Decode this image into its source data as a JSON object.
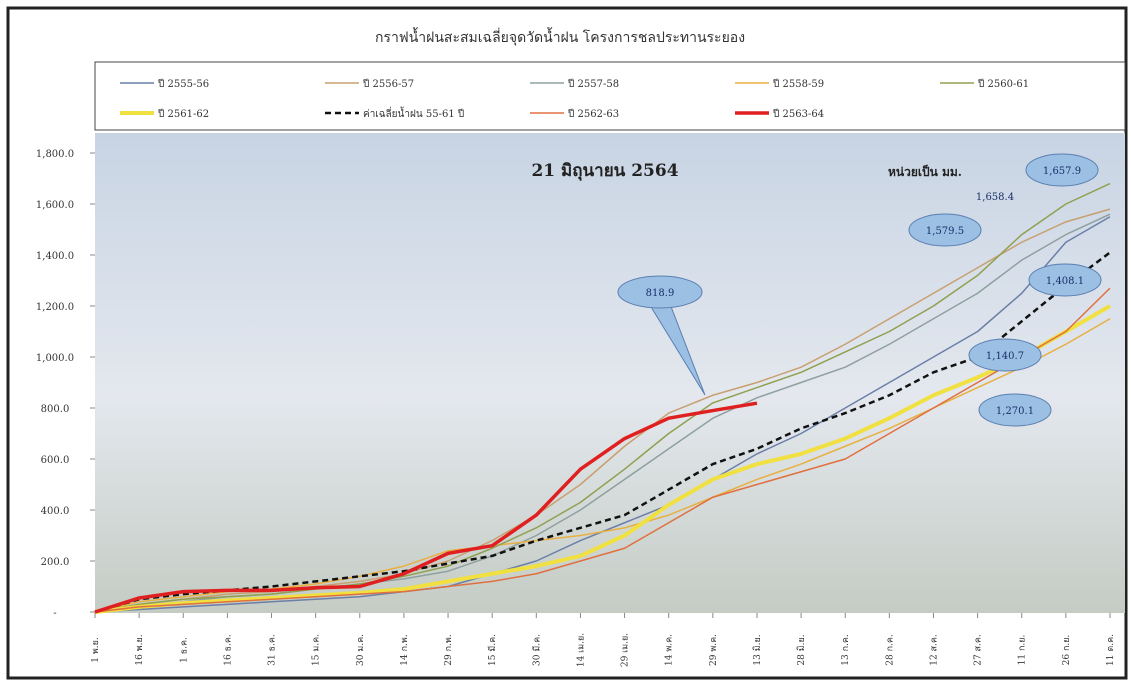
{
  "chart_data": {
    "type": "line",
    "title": "กราฟน้ำฝนสะสมเฉลี่ยจุดวัดน้ำฝน โครงการชลประทานระยอง",
    "annotations": [
      "21 มิถุนายน 2564",
      "หน่วยเป็น มม.",
      "818.9",
      "1,657.9",
      "1,658.4",
      "1,579.5",
      "1,408.1",
      "1,140.7",
      "1,270.1"
    ],
    "categories": [
      "1 พ.ย.",
      "16 พ.ย.",
      "1 ธ.ค.",
      "16 ธ.ค.",
      "31 ธ.ค.",
      "15 ม.ค.",
      "30 ม.ค.",
      "14 ก.พ.",
      "29 ก.พ.",
      "15 มี.ค.",
      "30 มี.ค.",
      "14 เม.ย.",
      "29 เม.ย.",
      "14 พ.ค.",
      "29 พ.ค.",
      "13 มิ.ย.",
      "28 มิ.ย.",
      "13 ก.ค.",
      "28 ก.ค.",
      "12 ส.ค.",
      "27 ส.ค.",
      "11 ก.ย.",
      "26 ก.ย.",
      "11 ต.ค."
    ],
    "ylim": [
      0,
      1800
    ],
    "yticks": [
      {
        "value": 0,
        "label": "-"
      },
      {
        "value": 200,
        "label": "200.0"
      },
      {
        "value": 400,
        "label": "400.0"
      },
      {
        "value": 600,
        "label": "600.0"
      },
      {
        "value": 800,
        "label": "800.0"
      },
      {
        "value": 1000,
        "label": "1,000.0"
      },
      {
        "value": 1200,
        "label": "1,200.0"
      },
      {
        "value": 1400,
        "label": "1,400.0"
      },
      {
        "value": 1600,
        "label": "1,600.0"
      },
      {
        "value": 1800,
        "label": "1,800.0"
      }
    ],
    "series": [
      {
        "name": "ปี 2555-56",
        "color": "#6b7fa8",
        "line_width": 1.5,
        "dashed": false,
        "values": [
          0,
          10,
          20,
          30,
          40,
          50,
          60,
          80,
          100,
          150,
          200,
          280,
          350,
          420,
          520,
          620,
          700,
          800,
          900,
          1000,
          1100,
          1250,
          1450,
          1550
        ]
      },
      {
        "name": "ปี 2556-57",
        "color": "#c8a070",
        "line_width": 1.5,
        "dashed": false,
        "values": [
          0,
          30,
          50,
          70,
          80,
          100,
          120,
          150,
          200,
          280,
          380,
          500,
          650,
          780,
          850,
          900,
          960,
          1050,
          1150,
          1250,
          1350,
          1450,
          1530,
          1580
        ]
      },
      {
        "name": "ปี 2557-58",
        "color": "#8fa0a0",
        "line_width": 1.5,
        "dashed": false,
        "values": [
          0,
          20,
          40,
          60,
          70,
          90,
          110,
          130,
          160,
          220,
          300,
          400,
          520,
          640,
          760,
          840,
          900,
          960,
          1050,
          1150,
          1250,
          1380,
          1480,
          1560
        ]
      },
      {
        "name": "ปี 2558-59",
        "color": "#e8b040",
        "line_width": 1.5,
        "dashed": false,
        "values": [
          0,
          40,
          60,
          80,
          90,
          110,
          140,
          180,
          240,
          260,
          280,
          300,
          330,
          380,
          450,
          520,
          580,
          650,
          720,
          800,
          880,
          960,
          1050,
          1150
        ]
      },
      {
        "name": "ปี 2560-61",
        "color": "#90a050",
        "line_width": 1.5,
        "dashed": false,
        "values": [
          0,
          30,
          50,
          60,
          70,
          90,
          110,
          140,
          180,
          250,
          330,
          430,
          560,
          700,
          820,
          880,
          940,
          1020,
          1100,
          1200,
          1320,
          1480,
          1600,
          1680
        ]
      },
      {
        "name": "ปี 2561-62",
        "color": "#f0e040",
        "line_width": 4,
        "dashed": false,
        "values": [
          0,
          20,
          35,
          45,
          55,
          65,
          75,
          90,
          120,
          150,
          180,
          220,
          300,
          420,
          520,
          580,
          620,
          680,
          760,
          850,
          920,
          1000,
          1100,
          1200
        ]
      },
      {
        "name": "ค่าเฉลี่ยน้ำฝน 55-61 ปี",
        "color": "#111111",
        "line_width": 2.5,
        "dashed": true,
        "values": [
          0,
          50,
          70,
          85,
          100,
          120,
          140,
          160,
          190,
          220,
          280,
          330,
          380,
          480,
          580,
          640,
          720,
          780,
          850,
          940,
          1000,
          1140,
          1280,
          1410
        ]
      },
      {
        "name": "ปี 2562-63",
        "color": "#e07040",
        "line_width": 1.5,
        "dashed": false,
        "values": [
          0,
          20,
          30,
          40,
          50,
          60,
          70,
          80,
          100,
          120,
          150,
          200,
          250,
          350,
          450,
          500,
          550,
          600,
          700,
          800,
          900,
          1000,
          1100,
          1270
        ]
      },
      {
        "name": "ปี 2563-64",
        "color": "#e02020",
        "line_width": 3.5,
        "dashed": false,
        "values": [
          0,
          55,
          80,
          85,
          85,
          95,
          100,
          150,
          230,
          260,
          380,
          560,
          680,
          760,
          790,
          818.9,
          null,
          null,
          null,
          null,
          null,
          null,
          null,
          null
        ]
      }
    ]
  }
}
